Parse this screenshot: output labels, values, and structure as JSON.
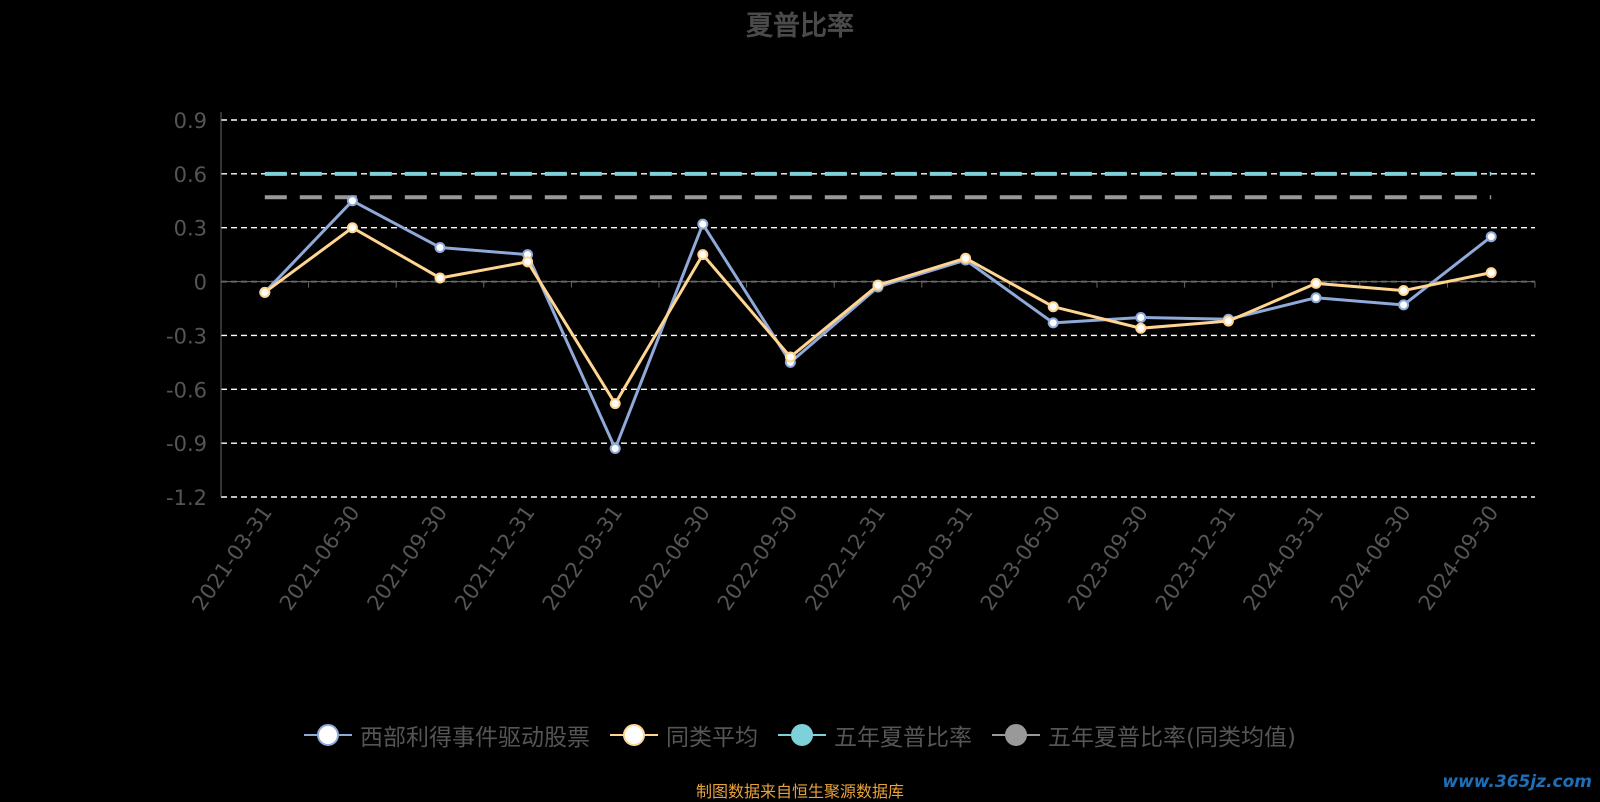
{
  "title": "夏普比率",
  "source_note": "制图数据来自恒生聚源数据库",
  "watermark": "www.365jz.com",
  "chart_data": {
    "type": "line",
    "title": "夏普比率",
    "categories": [
      "2021-03-31",
      "2021-06-30",
      "2021-09-30",
      "2021-12-31",
      "2022-03-31",
      "2022-06-30",
      "2022-09-30",
      "2022-12-31",
      "2023-03-31",
      "2023-06-30",
      "2023-09-30",
      "2023-12-31",
      "2024-03-31",
      "2024-06-30",
      "2024-09-30"
    ],
    "ylim": [
      -1.2,
      0.9
    ],
    "yticks": [
      0.9,
      0.6,
      0.3,
      0,
      -0.3,
      -0.6,
      -0.9,
      -1.2
    ],
    "ytick_labels": [
      "0.9",
      "0.6",
      "0.3",
      "0",
      "-0.3",
      "-0.6",
      "-0.9",
      "-1.2"
    ],
    "grid": true,
    "legend_position": "bottom",
    "series": [
      {
        "name": "西部利得事件驱动股票",
        "kind": "line",
        "color": "#8fa9d8",
        "marker_fill": "#ffffff",
        "values": [
          -0.06,
          0.45,
          0.19,
          0.15,
          -0.93,
          0.32,
          -0.45,
          -0.03,
          0.12,
          -0.23,
          -0.2,
          -0.21,
          -0.09,
          -0.13,
          0.25
        ]
      },
      {
        "name": "同类平均",
        "kind": "line",
        "color": "#ffd591",
        "marker_fill": "#ffffff",
        "values": [
          -0.06,
          0.3,
          0.02,
          0.11,
          -0.68,
          0.15,
          -0.42,
          -0.02,
          0.13,
          -0.14,
          -0.26,
          -0.22,
          -0.01,
          -0.05,
          0.05
        ]
      },
      {
        "name": "五年夏普比率",
        "kind": "reference",
        "color": "#7fd1d9",
        "value": 0.6
      },
      {
        "name": "五年夏普比率(同类均值)",
        "kind": "reference",
        "color": "#999999",
        "value": 0.47
      }
    ]
  }
}
